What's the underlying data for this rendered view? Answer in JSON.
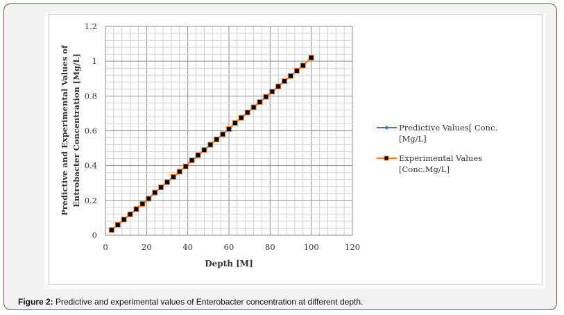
{
  "caption": {
    "label": "Figure 2:",
    "text": " Predictive and experimental values of Enterobacter concentration at different depth."
  },
  "chart_data": {
    "type": "line",
    "title": "",
    "xlabel": "Depth [M]",
    "ylabel_line1": "Predictive and Experimental Values of",
    "ylabel_line2": "Entrobacter  Concentration [Mg/L]",
    "xlim": [
      0,
      120
    ],
    "ylim": [
      0,
      1.2
    ],
    "xticks": [
      "0",
      "20",
      "40",
      "60",
      "80",
      "100",
      "120"
    ],
    "yticks": [
      "0",
      "0.2",
      "0.4",
      "0.6",
      "0.8",
      "1",
      "1.2"
    ],
    "grid": true,
    "legend_position": "right",
    "x": [
      3,
      6,
      9,
      12,
      15,
      18,
      21,
      24,
      27,
      30,
      33,
      36,
      39,
      42,
      45,
      48,
      51,
      54,
      57,
      60,
      63,
      66,
      69,
      72,
      75,
      78,
      81,
      84,
      87,
      90,
      93,
      96,
      100
    ],
    "series": [
      {
        "name_line1": "Predictive Values[ Conc.",
        "name_line2": "[Mg/L]",
        "color": "#4472c4",
        "marker": "diamond",
        "values": [
          0.03,
          0.06,
          0.09,
          0.12,
          0.15,
          0.18,
          0.21,
          0.245,
          0.275,
          0.305,
          0.335,
          0.365,
          0.395,
          0.43,
          0.46,
          0.49,
          0.52,
          0.55,
          0.58,
          0.61,
          0.645,
          0.675,
          0.705,
          0.735,
          0.765,
          0.795,
          0.825,
          0.855,
          0.885,
          0.915,
          0.945,
          0.975,
          1.02
        ]
      },
      {
        "name_line1": "Experimental Values",
        "name_line2": "[Conc.Mg/L]",
        "color": "#ed7d31",
        "marker": "square",
        "values": [
          0.03,
          0.06,
          0.09,
          0.12,
          0.15,
          0.18,
          0.21,
          0.245,
          0.275,
          0.305,
          0.335,
          0.365,
          0.395,
          0.43,
          0.46,
          0.49,
          0.52,
          0.55,
          0.58,
          0.61,
          0.645,
          0.675,
          0.705,
          0.735,
          0.765,
          0.795,
          0.825,
          0.855,
          0.885,
          0.915,
          0.945,
          0.975,
          1.02
        ]
      }
    ]
  }
}
